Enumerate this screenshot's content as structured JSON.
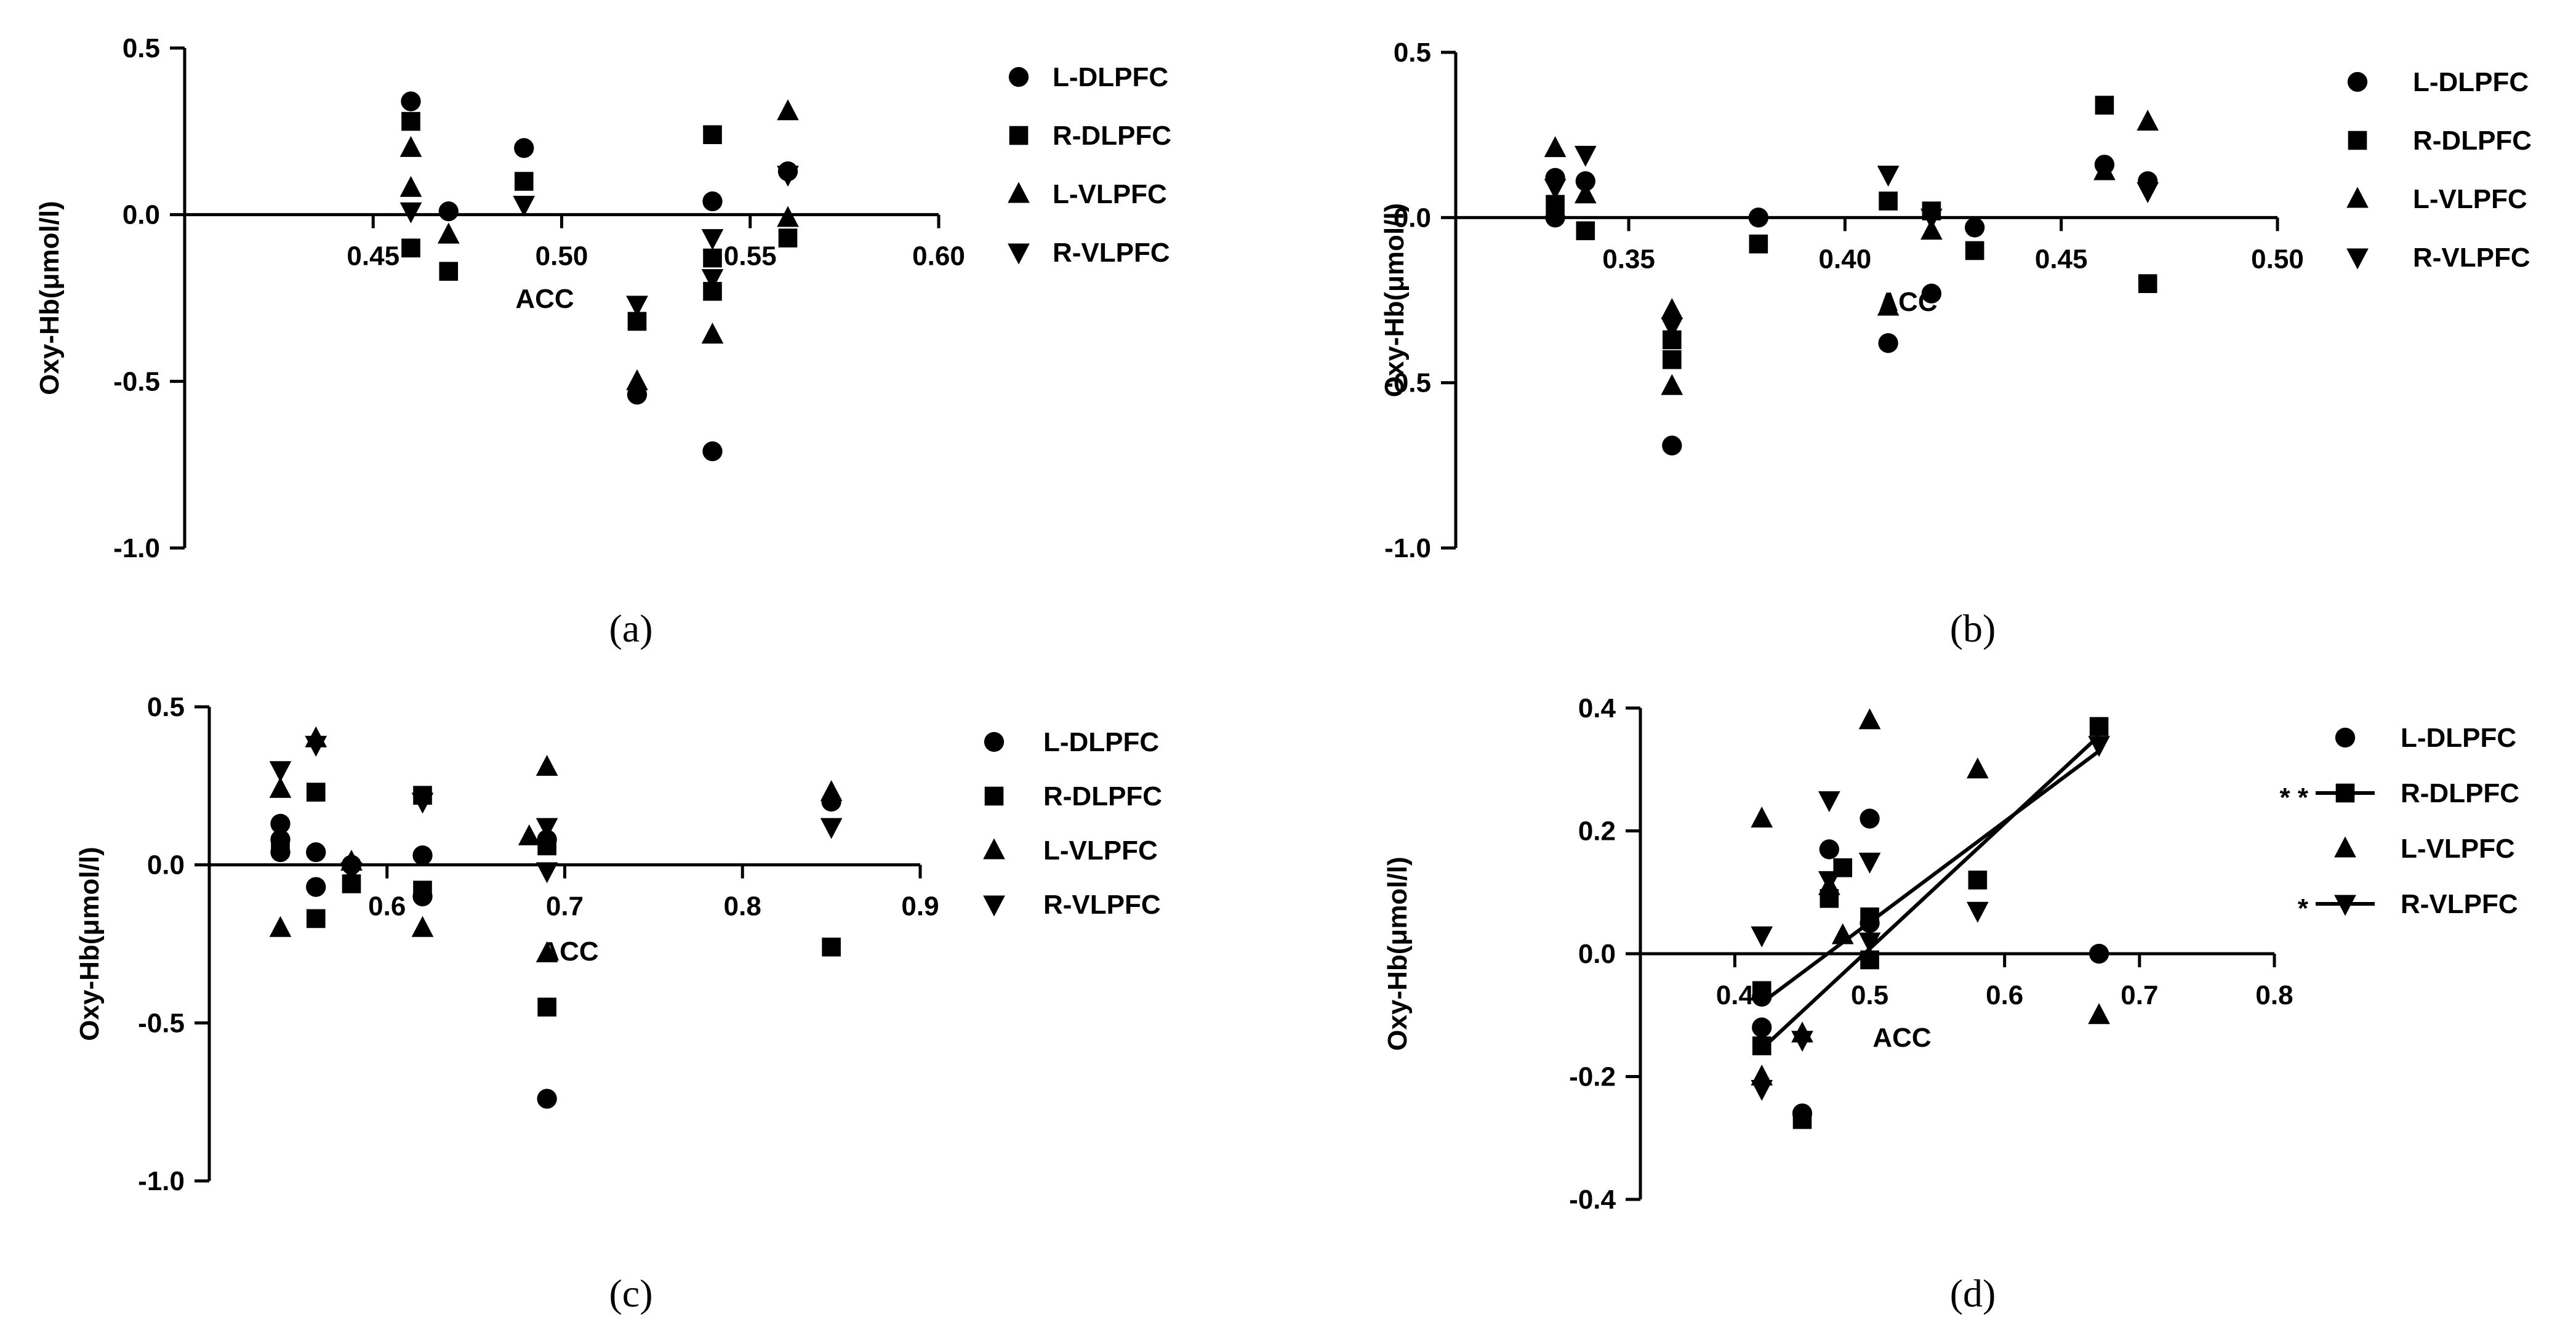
{
  "figure": {
    "captions": [
      "(a)",
      "(b)",
      "(c)",
      "(d)"
    ],
    "caption_letters": [
      "a",
      "b",
      "c",
      "d"
    ]
  },
  "colors": {
    "ink": "#000000",
    "background": "#ffffff"
  },
  "chart_data": [
    {
      "id": "a",
      "type": "scatter",
      "xlabel": "ACC",
      "ylabel": "Oxy-Hb(μmol/l)",
      "xlim": [
        0.4,
        0.6
      ],
      "ylim": [
        -1.0,
        0.5
      ],
      "xticks": [
        0.45,
        0.5,
        0.55,
        0.6
      ],
      "xtick_labels": [
        "0.45",
        "0.50",
        "0.55",
        "0.60"
      ],
      "yticks": [
        -1.0,
        -0.5,
        0.0,
        0.5
      ],
      "ytick_labels": [
        "-1.0",
        "-0.5",
        "0.0",
        "0.5"
      ],
      "series": [
        {
          "name": "L-DLPFC",
          "marker": "circle",
          "significance": "",
          "points": [
            [
              0.46,
              0.34
            ],
            [
              0.47,
              0.01
            ],
            [
              0.49,
              0.2
            ],
            [
              0.52,
              -0.54
            ],
            [
              0.54,
              0.04
            ],
            [
              0.54,
              -0.71
            ],
            [
              0.56,
              0.13
            ]
          ]
        },
        {
          "name": "R-DLPFC",
          "marker": "square",
          "significance": "",
          "points": [
            [
              0.46,
              0.28
            ],
            [
              0.46,
              -0.1
            ],
            [
              0.47,
              -0.17
            ],
            [
              0.49,
              0.1
            ],
            [
              0.52,
              -0.32
            ],
            [
              0.54,
              0.24
            ],
            [
              0.54,
              -0.13
            ],
            [
              0.54,
              -0.23
            ],
            [
              0.56,
              -0.07
            ]
          ]
        },
        {
          "name": "L-VLPFC",
          "marker": "triangle-up",
          "significance": "",
          "points": [
            [
              0.46,
              0.2
            ],
            [
              0.46,
              0.08
            ],
            [
              0.47,
              -0.06
            ],
            [
              0.52,
              -0.5
            ],
            [
              0.54,
              -0.36
            ],
            [
              0.56,
              0.31
            ],
            [
              0.56,
              -0.01
            ]
          ]
        },
        {
          "name": "R-VLPFC",
          "marker": "triangle-down",
          "significance": "",
          "points": [
            [
              0.46,
              0.01
            ],
            [
              0.49,
              0.03
            ],
            [
              0.52,
              -0.27
            ],
            [
              0.54,
              -0.07
            ],
            [
              0.54,
              -0.19
            ],
            [
              0.56,
              0.12
            ]
          ]
        }
      ],
      "fit_lines": []
    },
    {
      "id": "b",
      "type": "scatter",
      "xlabel": "ACC",
      "ylabel": "Oxy-Hb(μmol/l)",
      "xlim": [
        0.31,
        0.5
      ],
      "ylim": [
        -1.0,
        0.5
      ],
      "xticks": [
        0.35,
        0.4,
        0.45,
        0.5
      ],
      "xtick_labels": [
        "0.35",
        "0.40",
        "0.45",
        "0.50"
      ],
      "yticks": [
        -1.0,
        -0.5,
        0.0,
        0.5
      ],
      "ytick_labels": [
        "-1.0",
        "-0.5",
        "0.0",
        "0.5"
      ],
      "series": [
        {
          "name": "L-DLPFC",
          "marker": "circle",
          "significance": "",
          "points": [
            [
              0.333,
              0.12
            ],
            [
              0.333,
              0.0
            ],
            [
              0.34,
              0.11
            ],
            [
              0.36,
              -0.69
            ],
            [
              0.38,
              0.0
            ],
            [
              0.41,
              -0.38
            ],
            [
              0.42,
              -0.23
            ],
            [
              0.43,
              -0.03
            ],
            [
              0.46,
              0.16
            ],
            [
              0.47,
              0.11
            ]
          ]
        },
        {
          "name": "R-DLPFC",
          "marker": "square",
          "significance": "",
          "points": [
            [
              0.333,
              0.04
            ],
            [
              0.34,
              -0.04
            ],
            [
              0.36,
              -0.43
            ],
            [
              0.36,
              -0.37
            ],
            [
              0.38,
              -0.08
            ],
            [
              0.41,
              0.05
            ],
            [
              0.42,
              0.02
            ],
            [
              0.43,
              -0.1
            ],
            [
              0.46,
              0.34
            ],
            [
              0.47,
              -0.2
            ]
          ]
        },
        {
          "name": "L-VLPFC",
          "marker": "triangle-up",
          "significance": "",
          "points": [
            [
              0.333,
              0.21
            ],
            [
              0.34,
              0.07
            ],
            [
              0.36,
              -0.28
            ],
            [
              0.36,
              -0.51
            ],
            [
              0.41,
              -0.27
            ],
            [
              0.42,
              -0.04
            ],
            [
              0.46,
              0.14
            ],
            [
              0.47,
              0.29
            ]
          ]
        },
        {
          "name": "R-VLPFC",
          "marker": "triangle-down",
          "significance": "",
          "points": [
            [
              0.333,
              0.09
            ],
            [
              0.34,
              0.19
            ],
            [
              0.36,
              -0.33
            ],
            [
              0.41,
              0.13
            ],
            [
              0.42,
              0.0
            ],
            [
              0.47,
              0.08
            ]
          ]
        }
      ],
      "fit_lines": []
    },
    {
      "id": "c",
      "type": "scatter",
      "xlabel": "ACC",
      "ylabel": "Oxy-Hb(μmol/l)",
      "xlim": [
        0.5,
        0.9
      ],
      "ylim": [
        -1.0,
        0.5
      ],
      "xticks": [
        0.6,
        0.7,
        0.8,
        0.9
      ],
      "xtick_labels": [
        "0.6",
        "0.7",
        "0.8",
        "0.9"
      ],
      "yticks": [
        -1.0,
        -0.5,
        0.0,
        0.5
      ],
      "ytick_labels": [
        "-1.0",
        "-0.5",
        "0.0",
        "0.5"
      ],
      "series": [
        {
          "name": "L-DLPFC",
          "marker": "circle",
          "significance": "",
          "points": [
            [
              0.54,
              0.13
            ],
            [
              0.54,
              0.08
            ],
            [
              0.54,
              0.04
            ],
            [
              0.56,
              0.04
            ],
            [
              0.56,
              -0.07
            ],
            [
              0.58,
              0.0
            ],
            [
              0.62,
              0.03
            ],
            [
              0.62,
              -0.1
            ],
            [
              0.69,
              -0.74
            ],
            [
              0.69,
              0.08
            ],
            [
              0.85,
              0.2
            ]
          ]
        },
        {
          "name": "R-DLPFC",
          "marker": "square",
          "significance": "",
          "points": [
            [
              0.54,
              0.06
            ],
            [
              0.56,
              0.23
            ],
            [
              0.56,
              -0.17
            ],
            [
              0.58,
              -0.06
            ],
            [
              0.62,
              0.22
            ],
            [
              0.62,
              -0.08
            ],
            [
              0.69,
              -0.45
            ],
            [
              0.69,
              0.06
            ],
            [
              0.85,
              -0.26
            ]
          ]
        },
        {
          "name": "L-VLPFC",
          "marker": "triangle-up",
          "significance": "",
          "points": [
            [
              0.54,
              0.24
            ],
            [
              0.54,
              -0.2
            ],
            [
              0.56,
              0.4
            ],
            [
              0.58,
              0.01
            ],
            [
              0.62,
              -0.2
            ],
            [
              0.69,
              0.31
            ],
            [
              0.69,
              -0.28
            ],
            [
              0.68,
              0.09
            ],
            [
              0.85,
              0.23
            ]
          ]
        },
        {
          "name": "R-VLPFC",
          "marker": "triangle-down",
          "significance": "",
          "points": [
            [
              0.54,
              0.3
            ],
            [
              0.56,
              0.38
            ],
            [
              0.58,
              -0.02
            ],
            [
              0.62,
              0.2
            ],
            [
              0.69,
              0.12
            ],
            [
              0.69,
              -0.02
            ],
            [
              0.85,
              0.12
            ]
          ]
        }
      ],
      "fit_lines": []
    },
    {
      "id": "d",
      "type": "scatter",
      "xlabel": "ACC",
      "ylabel": "Oxy-Hb(μmol/l)",
      "xlim": [
        0.33,
        0.8
      ],
      "ylim": [
        -0.4,
        0.4
      ],
      "xticks": [
        0.4,
        0.5,
        0.6,
        0.7,
        0.8
      ],
      "xtick_labels": [
        "0.4",
        "0.5",
        "0.6",
        "0.7",
        "0.8"
      ],
      "yticks": [
        -0.4,
        -0.2,
        0.0,
        0.2,
        0.4
      ],
      "ytick_labels": [
        "-0.4",
        "-0.2",
        "0.0",
        "0.2",
        "0.4"
      ],
      "series": [
        {
          "name": "L-DLPFC",
          "marker": "circle",
          "significance": "",
          "points": [
            [
              0.42,
              -0.07
            ],
            [
              0.42,
              -0.12
            ],
            [
              0.45,
              -0.26
            ],
            [
              0.47,
              0.17
            ],
            [
              0.5,
              0.22
            ],
            [
              0.5,
              0.05
            ],
            [
              0.67,
              0.0
            ]
          ]
        },
        {
          "name": "R-DLPFC",
          "marker": "square",
          "significance": "* *",
          "points": [
            [
              0.42,
              -0.06
            ],
            [
              0.42,
              -0.15
            ],
            [
              0.45,
              -0.27
            ],
            [
              0.47,
              0.09
            ],
            [
              0.48,
              0.14
            ],
            [
              0.5,
              0.06
            ],
            [
              0.5,
              -0.01
            ],
            [
              0.58,
              0.12
            ],
            [
              0.67,
              0.37
            ]
          ]
        },
        {
          "name": "L-VLPFC",
          "marker": "triangle-up",
          "significance": "",
          "points": [
            [
              0.42,
              0.22
            ],
            [
              0.42,
              -0.2
            ],
            [
              0.45,
              -0.13
            ],
            [
              0.47,
              0.11
            ],
            [
              0.48,
              0.03
            ],
            [
              0.5,
              0.38
            ],
            [
              0.58,
              0.3
            ],
            [
              0.67,
              -0.1
            ]
          ]
        },
        {
          "name": "R-VLPFC",
          "marker": "triangle-down",
          "significance": "*",
          "points": [
            [
              0.42,
              0.03
            ],
            [
              0.42,
              -0.22
            ],
            [
              0.45,
              -0.14
            ],
            [
              0.47,
              0.25
            ],
            [
              0.47,
              0.12
            ],
            [
              0.5,
              0.15
            ],
            [
              0.5,
              0.02
            ],
            [
              0.58,
              0.07
            ],
            [
              0.67,
              0.34
            ]
          ]
        }
      ],
      "fit_lines": [
        {
          "series": "R-DLPFC",
          "x": [
            0.42,
            0.67
          ],
          "y": [
            -0.155,
            0.355
          ]
        },
        {
          "series": "R-VLPFC",
          "x": [
            0.42,
            0.67
          ],
          "y": [
            -0.08,
            0.33
          ]
        }
      ]
    }
  ]
}
